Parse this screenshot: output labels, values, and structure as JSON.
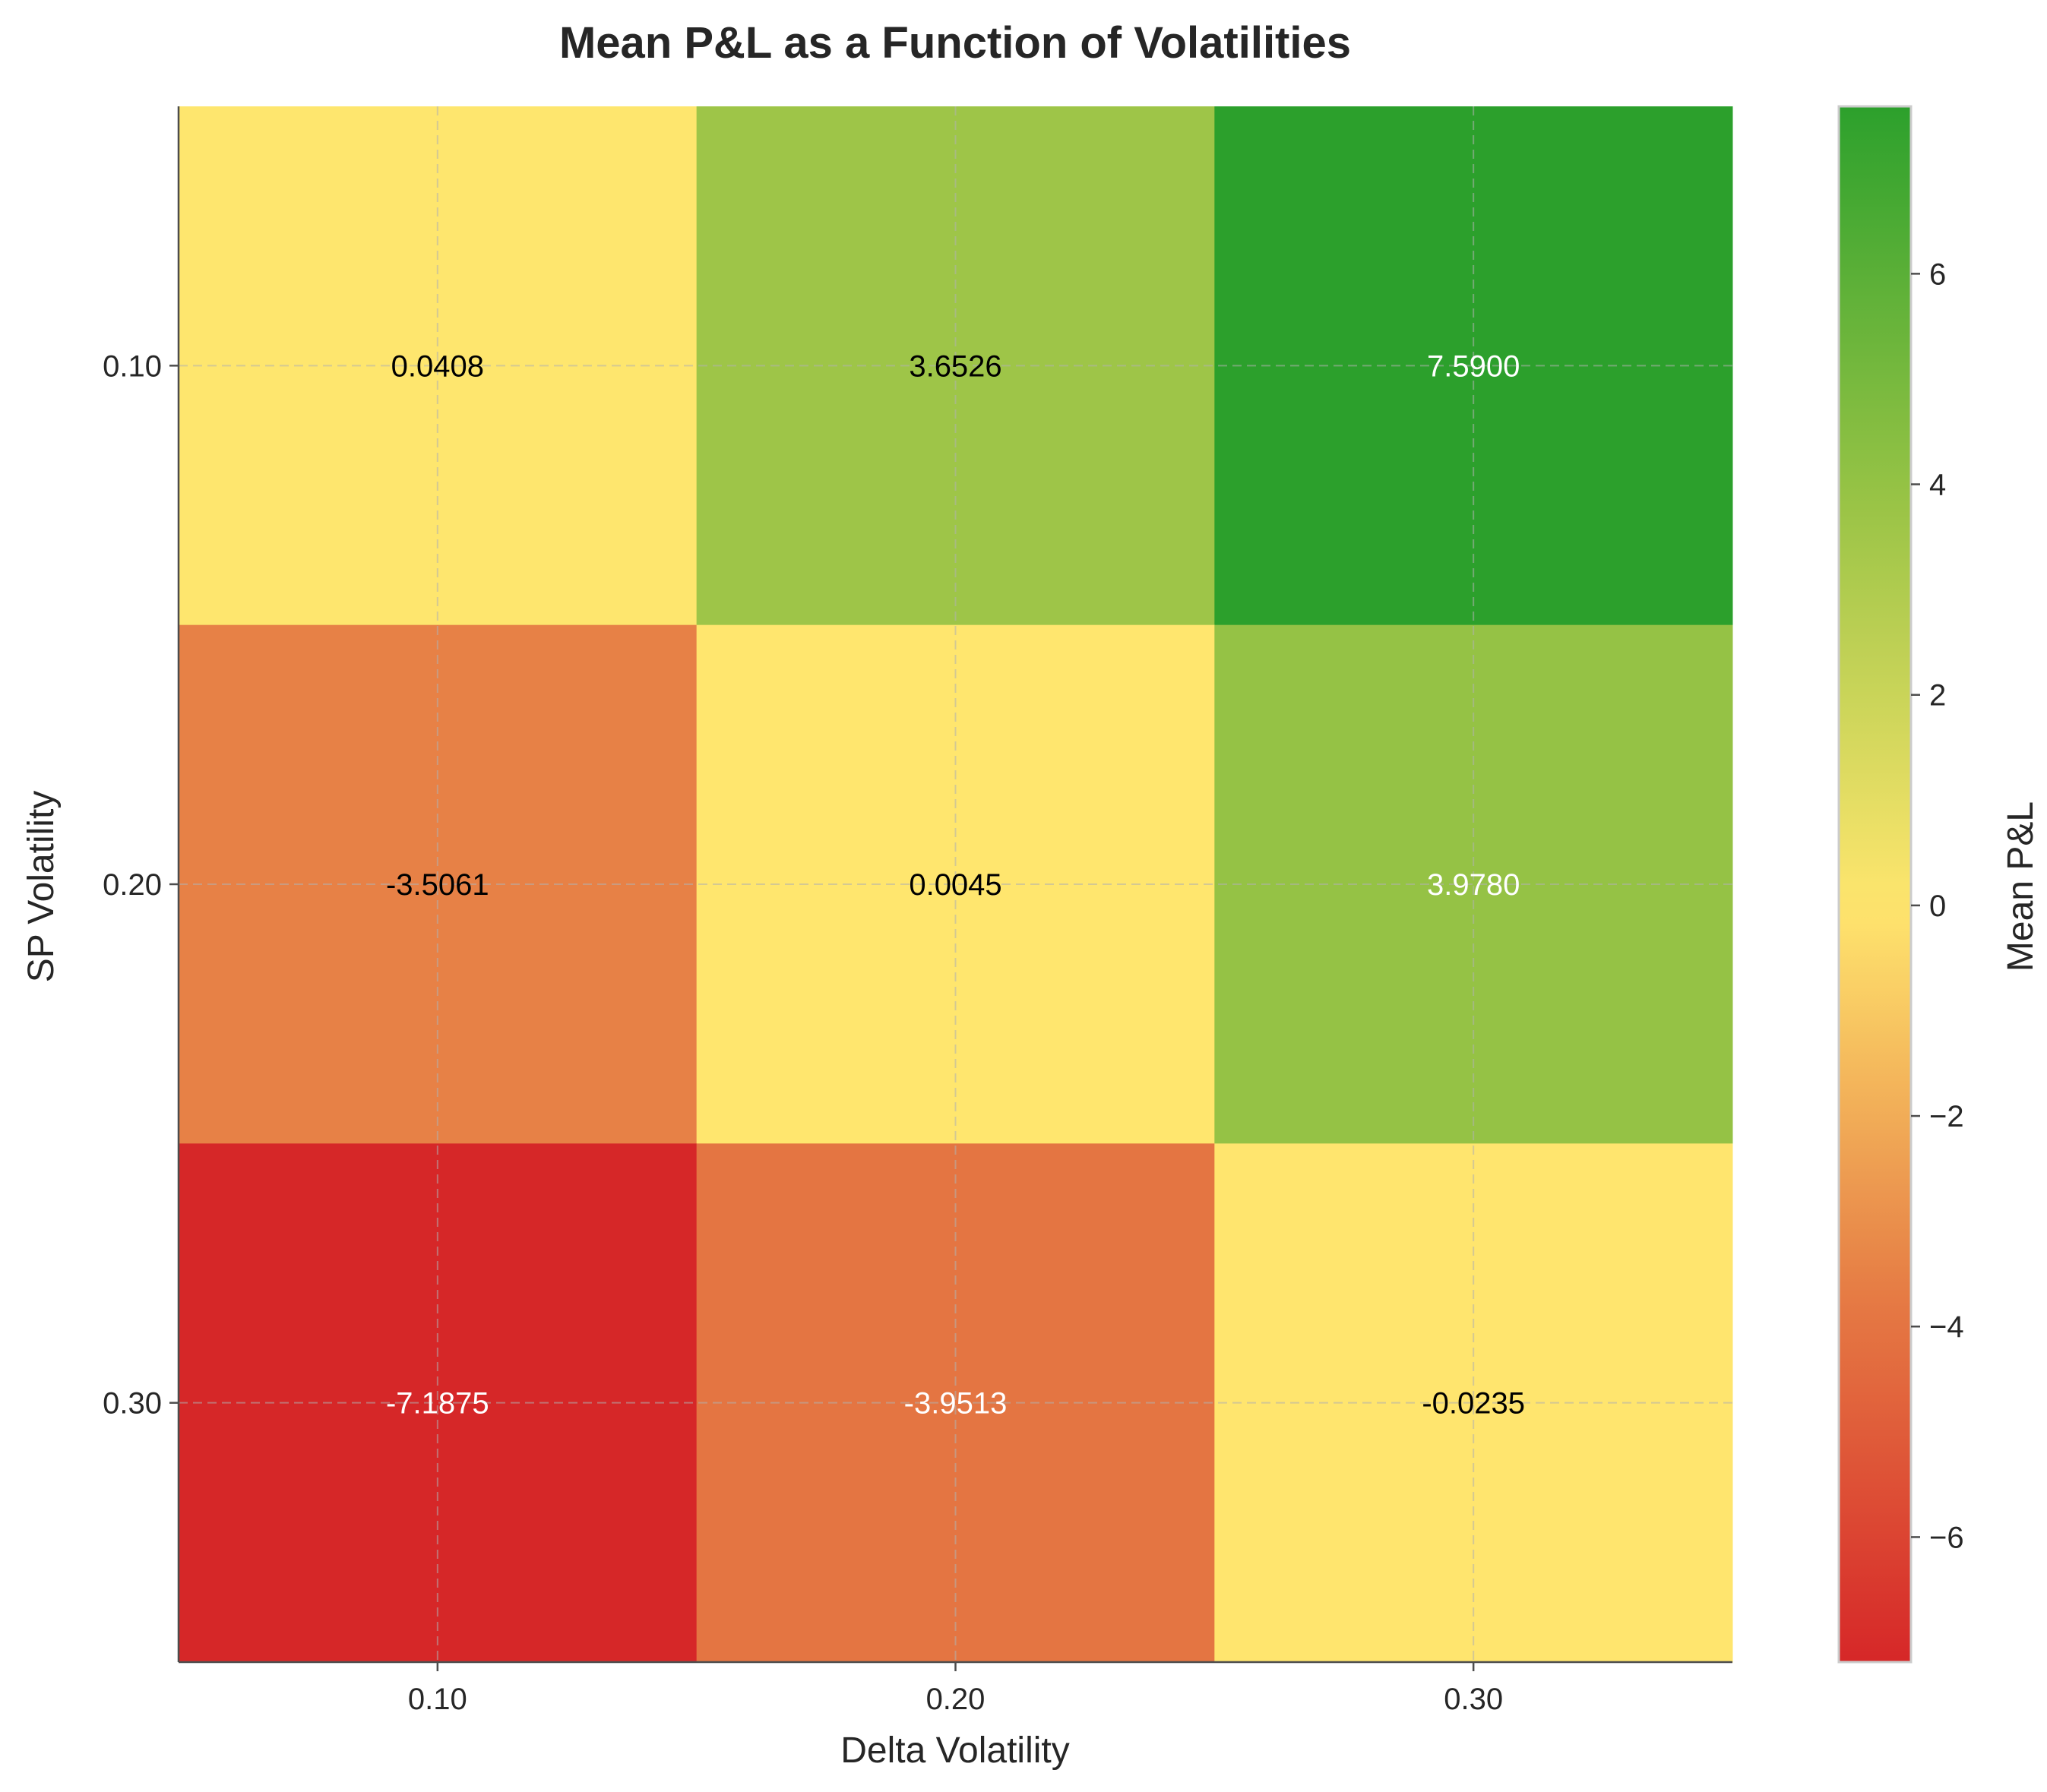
{
  "chart_data": {
    "type": "heatmap",
    "title": "Mean P&L as a Function of Volatilities",
    "xlabel": "Delta Volatility",
    "ylabel": "SP Volatility",
    "x_categories": [
      "0.10",
      "0.20",
      "0.30"
    ],
    "y_categories": [
      "0.10",
      "0.20",
      "0.30"
    ],
    "values": [
      [
        0.0408,
        3.6526,
        7.59
      ],
      [
        -3.5061,
        0.0045,
        3.978
      ],
      [
        -7.1875,
        -3.9513,
        -0.0235
      ]
    ],
    "value_labels": [
      [
        "0.0408",
        "3.6526",
        "7.5900"
      ],
      [
        "-3.5061",
        "0.0045",
        "3.9780"
      ],
      [
        "-7.1875",
        "-3.9513",
        "-0.0235"
      ]
    ],
    "colorbar": {
      "label": "Mean P&L",
      "range": [
        -7.1875,
        7.59
      ],
      "ticks": [
        -6,
        -4,
        -2,
        0,
        2,
        4,
        6
      ],
      "tick_labels": [
        "−6",
        "−4",
        "−2",
        "0",
        "2",
        "4",
        "6"
      ]
    },
    "colormap": [
      "#d62728",
      "#e67e45",
      "#ffe66e",
      "#9ac446",
      "#2ca02c"
    ],
    "grid": true
  }
}
